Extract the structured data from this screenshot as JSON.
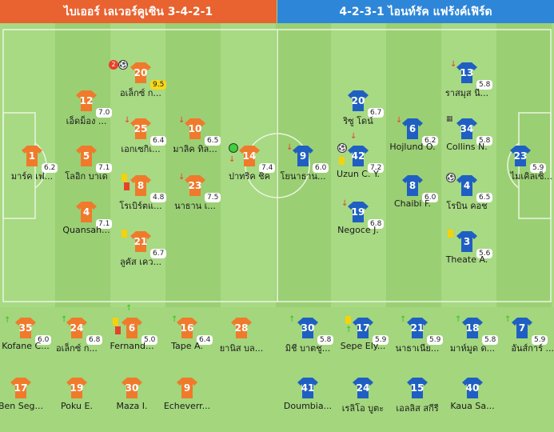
{
  "home": {
    "title": "ไบเออร์ เลเวอร์คูเซิน 3-4-2-1",
    "color": "#e8632f"
  },
  "away": {
    "title": "4-2-3-1 ไอนท์รัค แฟร้งค์เฟิร์ด",
    "color": "#2e86d8"
  },
  "home_players": [
    {
      "num": "1",
      "name": "มาร์ค เฟ...",
      "rating": "6.2"
    },
    {
      "num": "12",
      "name": "เอ็ดม็อง ...",
      "rating": "7.0"
    },
    {
      "num": "5",
      "name": "โลอิก บาเด",
      "rating": "7.1"
    },
    {
      "num": "4",
      "name": "Quansah...",
      "rating": "7.1"
    },
    {
      "num": "20",
      "name": "อเล็กซ์ ก...",
      "rating": "9.5"
    },
    {
      "num": "25",
      "name": "เอกเซกิเ...",
      "rating": "6.4"
    },
    {
      "num": "8",
      "name": "โรเบิร์ตแ...",
      "rating": "4.8"
    },
    {
      "num": "21",
      "name": "ลูคัส เคว...",
      "rating": "6.7"
    },
    {
      "num": "10",
      "name": "มาลิค ทิล...",
      "rating": "6.5"
    },
    {
      "num": "23",
      "name": "นาธาน เ...",
      "rating": "7.5"
    },
    {
      "num": "14",
      "name": "ปาทริค ชิค",
      "rating": "7.4"
    }
  ],
  "away_players": [
    {
      "num": "9",
      "name": "โยนาธาน...",
      "rating": "6.0"
    },
    {
      "num": "20",
      "name": "ริซู โดน์",
      "rating": "6.7"
    },
    {
      "num": "42",
      "name": "Uzun C. Y.",
      "rating": "7.2"
    },
    {
      "num": "19",
      "name": "Negoce J.",
      "rating": "6.8"
    },
    {
      "num": "6",
      "name": "Hojlund O.",
      "rating": "6.2"
    },
    {
      "num": "8",
      "name": "Chaibi F.",
      "rating": "6.0"
    },
    {
      "num": "13",
      "name": "ราสมุส นี...",
      "rating": "5.8"
    },
    {
      "num": "34",
      "name": "Collins N.",
      "rating": "5.8"
    },
    {
      "num": "4",
      "name": "โรบิน คอช",
      "rating": "6.5"
    },
    {
      "num": "3",
      "name": "Theate A.",
      "rating": "5.6"
    },
    {
      "num": "23",
      "name": "ไมเคิลเซ็...",
      "rating": "5.9"
    }
  ],
  "home_subs": [
    {
      "num": "35",
      "name": "Kofane C...",
      "rating": "6.0"
    },
    {
      "num": "24",
      "name": "อเล็กซ์ ก...",
      "rating": "6.8"
    },
    {
      "num": "6",
      "name": "Fernand...",
      "rating": "5.0"
    },
    {
      "num": "16",
      "name": "Tape A.",
      "rating": "6.4"
    },
    {
      "num": "28",
      "name": "ยานิส บล...",
      "rating": ""
    },
    {
      "num": "17",
      "name": "Ben Seg...",
      "rating": ""
    },
    {
      "num": "19",
      "name": "Poku E.",
      "rating": ""
    },
    {
      "num": "30",
      "name": "Maza I.",
      "rating": ""
    },
    {
      "num": "9",
      "name": "Echeverr...",
      "rating": ""
    }
  ],
  "away_subs": [
    {
      "num": "30",
      "name": "มิชี บาตชู...",
      "rating": "5.8"
    },
    {
      "num": "17",
      "name": "Sepe Ely...",
      "rating": "5.9"
    },
    {
      "num": "21",
      "name": "นาธาเนีย...",
      "rating": "5.9"
    },
    {
      "num": "18",
      "name": "มาห์มูด ด...",
      "rating": "5.8"
    },
    {
      "num": "7",
      "name": "อันส์การ์ ...",
      "rating": "5.9"
    },
    {
      "num": "41",
      "name": "Doumbia...",
      "rating": ""
    },
    {
      "num": "24",
      "name": "เรลิโอ บูตะ",
      "rating": ""
    },
    {
      "num": "15",
      "name": "เอลลิส สกีรี",
      "rating": ""
    },
    {
      "num": "40",
      "name": "Kaua Sa...",
      "rating": ""
    }
  ],
  "badges": {
    "goals_count": "2"
  }
}
